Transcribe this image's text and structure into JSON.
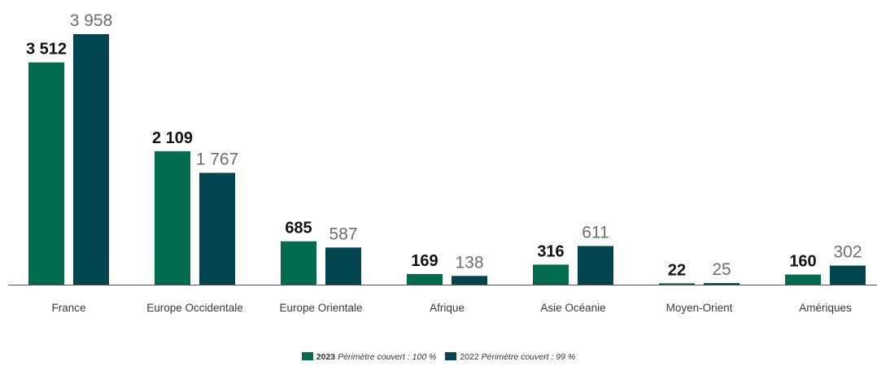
{
  "chart_data": {
    "type": "bar",
    "categories": [
      "France",
      "Europe Occidentale",
      "Europe Orientale",
      "Afrique",
      "Asie Océanie",
      "Moyen-Orient",
      "Amériques"
    ],
    "series": [
      {
        "name": "2023",
        "values": [
          3512,
          2109,
          685,
          169,
          316,
          22,
          160
        ],
        "labels": [
          "3 512",
          "2 109",
          "685",
          "169",
          "316",
          "22",
          "160"
        ],
        "color": "#006b4f",
        "note": "Périmètre couvert : 100 %"
      },
      {
        "name": "2022",
        "values": [
          3958,
          1767,
          587,
          138,
          611,
          25,
          302
        ],
        "labels": [
          "3 958",
          "1 767",
          "587",
          "138",
          "611",
          "25",
          "302"
        ],
        "color": "#004550",
        "note": "Périmètre couvert : 99 %"
      }
    ],
    "ylim": [
      0,
      4000
    ],
    "grid": false,
    "legend_position": "bottom-center",
    "title": "",
    "xlabel": "",
    "ylabel": ""
  }
}
